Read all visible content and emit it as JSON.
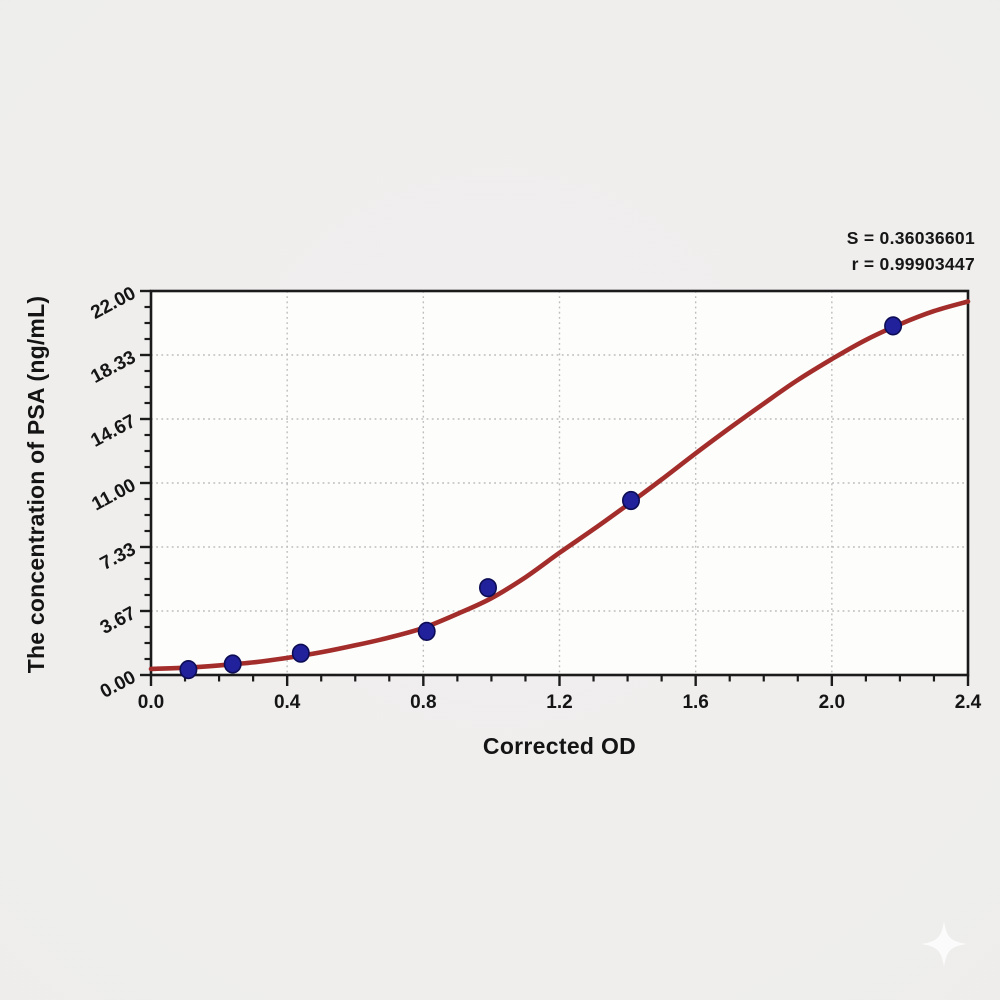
{
  "stats": {
    "s_label": "S = 0.36036601",
    "r_label": "r = 0.99903447"
  },
  "chart_data": {
    "type": "scatter",
    "title": "",
    "xlabel": "Corrected OD",
    "ylabel": "The concentration of PSA (ng/mL)",
    "xlim": [
      0,
      2.4
    ],
    "ylim": [
      0,
      22
    ],
    "x_major_ticks": [
      0,
      0.4,
      0.8,
      1.2,
      1.6,
      2.0,
      2.4
    ],
    "x_tick_labels": [
      "0.0",
      "0.4",
      "0.8",
      "1.2",
      "1.6",
      "2.0",
      "2.4"
    ],
    "x_minor_step": 0.1,
    "y_major_ticks": [
      0,
      3.6667,
      7.3333,
      11.0,
      14.6667,
      18.3333,
      22.0
    ],
    "y_tick_labels": [
      "0.00",
      "3.67",
      "7.33",
      "11.00",
      "14.67",
      "18.33",
      "22.00"
    ],
    "y_minor_divisions": 4,
    "grid": "dotted-major",
    "legend": "none",
    "annotations": [
      "S = 0.36036601",
      "r = 0.99903447"
    ],
    "points": [
      {
        "od": 0.11,
        "conc": 0.31
      },
      {
        "od": 0.24,
        "conc": 0.63
      },
      {
        "od": 0.44,
        "conc": 1.25
      },
      {
        "od": 0.81,
        "conc": 2.5
      },
      {
        "od": 0.99,
        "conc": 5.0
      },
      {
        "od": 1.41,
        "conc": 10.0
      },
      {
        "od": 2.18,
        "conc": 20.0
      }
    ],
    "fit_curve": {
      "x": [
        0.0,
        0.1,
        0.2,
        0.3,
        0.4,
        0.5,
        0.6,
        0.7,
        0.8,
        0.9,
        1.0,
        1.1,
        1.2,
        1.3,
        1.4,
        1.5,
        1.6,
        1.7,
        1.8,
        1.9,
        2.0,
        2.1,
        2.2,
        2.3,
        2.4
      ],
      "y": [
        0.35,
        0.42,
        0.55,
        0.72,
        0.98,
        1.3,
        1.7,
        2.15,
        2.7,
        3.5,
        4.4,
        5.6,
        7.0,
        8.35,
        9.75,
        11.2,
        12.7,
        14.15,
        15.55,
        16.9,
        18.1,
        19.2,
        20.1,
        20.85,
        21.4
      ]
    },
    "colors": {
      "curve": "#a32d2a",
      "point_fill": "#21219b",
      "point_stroke": "#0d0d55",
      "grid": "#bdbdbd",
      "axis": "#1b1b1b",
      "plot_bg": "#fdfdfc",
      "text": "#151515"
    }
  },
  "watermark": {
    "icon": "sparkle-star",
    "color": "#ffffff"
  }
}
